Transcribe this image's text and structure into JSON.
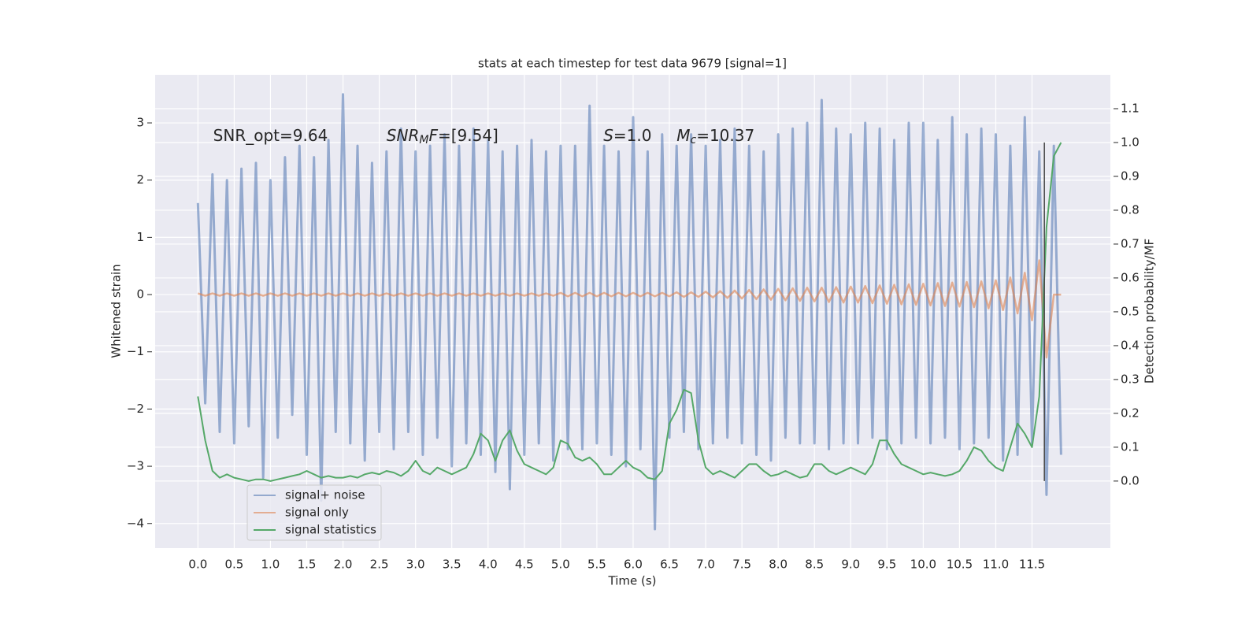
{
  "chart_data": {
    "type": "line",
    "title": "stats at each timestep for test data 9679 [signal=1]",
    "xlabel": "Time (s)",
    "ylabel": "Whitened strain",
    "y2label": "Detection probability/MF",
    "xlim": [
      -0.59,
      12.58
    ],
    "ylim": [
      -4.43,
      3.84
    ],
    "y2lim": [
      -0.198,
      1.2
    ],
    "xticks": [
      {
        "value": 0,
        "label": "0.0"
      },
      0.5,
      {
        "value": 1,
        "label": "1.0"
      },
      1.5,
      {
        "value": 2,
        "label": "2.0"
      },
      2.5,
      {
        "value": 3,
        "label": "3.0"
      },
      3.5,
      {
        "value": 4,
        "label": "4.0"
      },
      4.5,
      {
        "value": 5,
        "label": "5.0"
      },
      5.5,
      {
        "value": 6,
        "label": "6.0"
      },
      6.5,
      {
        "value": 7,
        "label": "7.0"
      },
      7.5,
      {
        "value": 8,
        "label": "8.0"
      },
      8.5,
      {
        "value": 9,
        "label": "9.0"
      },
      9.5,
      {
        "value": 10,
        "label": "10.0"
      },
      10.5,
      {
        "value": 11,
        "label": "11.0"
      },
      11.5
    ],
    "yticks": [
      {
        "value": -4,
        "label": "−4"
      },
      {
        "value": -3,
        "label": "−3"
      },
      {
        "value": -2,
        "label": "−2"
      },
      {
        "value": -1,
        "label": "−1"
      },
      0,
      1,
      2,
      3
    ],
    "y2ticks": [
      {
        "value": 0,
        "label": "0.0"
      },
      0.1,
      0.2,
      0.3,
      0.4,
      0.5,
      0.6,
      0.7,
      0.8,
      0.9,
      {
        "value": 1,
        "label": "1.0"
      },
      1.1
    ],
    "grid": true,
    "legend": "lower left",
    "x": [
      0,
      0.1,
      0.2,
      0.3,
      0.4,
      0.5,
      0.6,
      0.7,
      0.8,
      0.9,
      1,
      1.1,
      1.2,
      1.3,
      1.4,
      1.5,
      1.6,
      1.7,
      1.8,
      1.9,
      2,
      2.1,
      2.2,
      2.3,
      2.4,
      2.5,
      2.6,
      2.7,
      2.8,
      2.9,
      3,
      3.1,
      3.2,
      3.3,
      3.4,
      3.5,
      3.6,
      3.7,
      3.8,
      3.9,
      4,
      4.1,
      4.2,
      4.3,
      4.4,
      4.5,
      4.6,
      4.7,
      4.8,
      4.9,
      5,
      5.1,
      5.2,
      5.3,
      5.4,
      5.5,
      5.6,
      5.7,
      5.8,
      5.9,
      6,
      6.1,
      6.2,
      6.3,
      6.4,
      6.5,
      6.6,
      6.7,
      6.8,
      6.9,
      7,
      7.1,
      7.2,
      7.3,
      7.4,
      7.5,
      7.6,
      7.7,
      7.8,
      7.9,
      8,
      8.1,
      8.2,
      8.3,
      8.4,
      8.5,
      8.6,
      8.7,
      8.8,
      8.9,
      9,
      9.1,
      9.2,
      9.3,
      9.4,
      9.5,
      9.6,
      9.7,
      9.8,
      9.9,
      10,
      10.1,
      10.2,
      10.3,
      10.4,
      10.5,
      10.6,
      10.7,
      10.8,
      10.9,
      11,
      11.1,
      11.2,
      11.3,
      11.4,
      11.5,
      11.6,
      11.7,
      11.8,
      11.9
    ],
    "series": [
      {
        "name": "signal+ noise",
        "color": "#4c72b0",
        "alpha": 0.55,
        "values": [
          1.6,
          -1.9,
          2.1,
          -2.4,
          2.0,
          -2.6,
          2.2,
          -2.3,
          2.3,
          -3.2,
          2.0,
          -2.5,
          2.4,
          -2.1,
          2.6,
          -2.8,
          2.4,
          -3.6,
          2.7,
          -2.4,
          3.5,
          -2.6,
          2.6,
          -2.9,
          2.3,
          -2.4,
          2.5,
          -2.7,
          2.9,
          -2.4,
          2.5,
          -2.8,
          2.6,
          -2.5,
          2.8,
          -3.0,
          2.6,
          -2.6,
          2.9,
          -2.8,
          2.7,
          -3.1,
          2.5,
          -3.4,
          2.6,
          -2.8,
          2.7,
          -2.6,
          2.5,
          -2.9,
          2.6,
          -2.7,
          2.6,
          -2.7,
          3.3,
          -2.6,
          2.6,
          -2.8,
          2.5,
          -3.0,
          3.1,
          -2.7,
          2.5,
          -4.1,
          2.8,
          -2.5,
          2.6,
          -2.4,
          2.8,
          -2.7,
          2.6,
          -2.6,
          2.7,
          -2.5,
          2.9,
          -2.6,
          2.6,
          -2.8,
          2.5,
          -2.9,
          2.8,
          -2.5,
          2.9,
          -2.6,
          3.0,
          -2.6,
          3.4,
          -2.7,
          2.9,
          -2.6,
          2.8,
          -2.6,
          3.0,
          -2.5,
          2.9,
          -2.7,
          2.7,
          -2.6,
          3.0,
          -2.5,
          3.0,
          -2.6,
          2.7,
          -2.5,
          3.1,
          -2.7,
          2.8,
          -2.6,
          2.9,
          -2.5,
          2.8,
          -2.9,
          2.6,
          -2.8,
          3.1,
          -2.6,
          2.5,
          -3.5,
          2.6,
          -2.8
        ]
      },
      {
        "name": "signal only",
        "color": "#dd8452",
        "alpha": 0.6,
        "values": [
          0.02,
          -0.02,
          0.02,
          -0.02,
          0.02,
          -0.02,
          0.02,
          -0.02,
          0.02,
          -0.02,
          0.02,
          -0.02,
          0.02,
          -0.02,
          0.02,
          -0.02,
          0.02,
          -0.02,
          0.02,
          -0.02,
          0.02,
          -0.02,
          0.02,
          -0.02,
          0.02,
          -0.02,
          0.02,
          -0.02,
          0.02,
          -0.02,
          0.02,
          -0.02,
          0.02,
          -0.02,
          0.02,
          -0.02,
          0.02,
          -0.02,
          0.02,
          -0.02,
          0.02,
          -0.02,
          0.02,
          -0.02,
          0.02,
          -0.02,
          0.02,
          -0.02,
          0.02,
          -0.02,
          0.03,
          -0.03,
          0.03,
          -0.03,
          0.03,
          -0.03,
          0.03,
          -0.03,
          0.03,
          -0.03,
          0.03,
          -0.03,
          0.03,
          -0.03,
          0.03,
          -0.03,
          0.04,
          -0.04,
          0.04,
          -0.04,
          0.05,
          -0.05,
          0.06,
          -0.06,
          0.07,
          -0.07,
          0.08,
          -0.08,
          0.09,
          -0.09,
          0.1,
          -0.1,
          0.11,
          -0.11,
          0.12,
          -0.12,
          0.12,
          -0.13,
          0.13,
          -0.14,
          0.14,
          -0.14,
          0.15,
          -0.15,
          0.16,
          -0.16,
          0.17,
          -0.17,
          0.18,
          -0.18,
          0.19,
          -0.19,
          0.2,
          -0.2,
          0.21,
          -0.21,
          0.22,
          -0.22,
          0.23,
          -0.24,
          0.25,
          -0.27,
          0.3,
          -0.33,
          0.38,
          -0.45,
          0.6,
          -1.1,
          0,
          0
        ]
      },
      {
        "name": "signal statistics",
        "color": "#55a868",
        "alpha": 1,
        "axis": "y2",
        "values": [
          0.25,
          0.12,
          0.03,
          0.01,
          0.02,
          0.01,
          0.005,
          0.0,
          0.005,
          0.005,
          0.0,
          0.005,
          0.01,
          0.015,
          0.02,
          0.03,
          0.02,
          0.01,
          0.015,
          0.01,
          0.01,
          0.015,
          0.01,
          0.02,
          0.025,
          0.02,
          0.03,
          0.025,
          0.015,
          0.03,
          0.06,
          0.03,
          0.02,
          0.04,
          0.03,
          0.02,
          0.03,
          0.04,
          0.08,
          0.14,
          0.12,
          0.06,
          0.12,
          0.15,
          0.09,
          0.05,
          0.04,
          0.03,
          0.02,
          0.04,
          0.12,
          0.11,
          0.07,
          0.06,
          0.07,
          0.05,
          0.02,
          0.02,
          0.04,
          0.06,
          0.04,
          0.03,
          0.01,
          0.005,
          0.03,
          0.17,
          0.21,
          0.27,
          0.26,
          0.12,
          0.04,
          0.02,
          0.03,
          0.02,
          0.01,
          0.03,
          0.05,
          0.05,
          0.03,
          0.015,
          0.02,
          0.03,
          0.02,
          0.01,
          0.015,
          0.05,
          0.05,
          0.03,
          0.02,
          0.03,
          0.04,
          0.03,
          0.02,
          0.05,
          0.12,
          0.12,
          0.08,
          0.05,
          0.04,
          0.03,
          0.02,
          0.025,
          0.02,
          0.015,
          0.02,
          0.03,
          0.06,
          0.1,
          0.09,
          0.06,
          0.04,
          0.03,
          0.1,
          0.17,
          0.14,
          0.1,
          0.25,
          0.75,
          0.96,
          1.0
        ]
      }
    ],
    "vline": {
      "x": 11.67,
      "ymin": 0,
      "ymax": 1,
      "axis": "y2",
      "color": "#444444"
    },
    "annotations": [
      {
        "x": 0.21,
        "y": 2.77,
        "parts": [
          {
            "text": "SNR_opt=9.64"
          }
        ]
      },
      {
        "x": 2.6,
        "y": 2.77,
        "parts": [
          {
            "text": "SNR",
            "style": "italic"
          },
          {
            "text": "M",
            "style": "sub"
          },
          {
            "text": "F",
            "style": "italic"
          },
          {
            "text": "=[9.54]"
          }
        ]
      },
      {
        "x": 5.59,
        "y": 2.77,
        "parts": [
          {
            "text": "S",
            "style": "italic"
          },
          {
            "text": "=1.0"
          }
        ]
      },
      {
        "x": 6.6,
        "y": 2.77,
        "parts": [
          {
            "text": "M",
            "style": "italic"
          },
          {
            "text": "c",
            "style": "sub"
          },
          {
            "text": "=10.37"
          }
        ]
      }
    ]
  }
}
